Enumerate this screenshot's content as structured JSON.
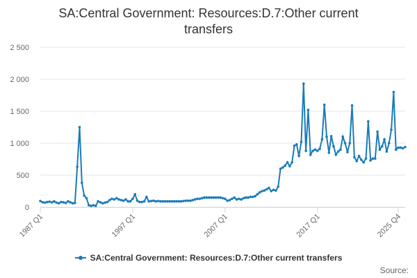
{
  "chart_data": {
    "type": "line",
    "title": "SA:Central Government: Resources:D.7:Other current transfers",
    "title_lines": [
      "SA:Central Government: Resources:D.7:Other current",
      "transfers"
    ],
    "xlabel": "",
    "ylabel": "",
    "ylim": [
      0,
      2500
    ],
    "yticks": [
      0,
      500,
      1000,
      1500,
      2000,
      2500
    ],
    "ytick_labels": [
      "0",
      "500",
      "1 000",
      "1 500",
      "2 000",
      "2 500"
    ],
    "xtick_labels": [
      "1987 Q1",
      "1997 Q1",
      "2007 Q1",
      "2017 Q1",
      "2025 Q4"
    ],
    "xtick_indices": [
      0,
      40,
      80,
      120,
      155
    ],
    "grid": true,
    "legend_position": "bottom",
    "color": "#1a7bb9",
    "series": [
      {
        "name": "SA:Central Government: Resources:D.7:Other current transfers",
        "values": [
          95,
          75,
          70,
          80,
          85,
          75,
          90,
          70,
          60,
          80,
          75,
          65,
          90,
          75,
          60,
          65,
          630,
          1250,
          380,
          180,
          140,
          30,
          20,
          30,
          20,
          90,
          75,
          60,
          70,
          80,
          110,
          130,
          120,
          140,
          120,
          110,
          100,
          120,
          90,
          90,
          130,
          200,
          100,
          80,
          80,
          90,
          160,
          90,
          95,
          100,
          90,
          95,
          90,
          90,
          90,
          90,
          90,
          90,
          90,
          90,
          90,
          90,
          95,
          100,
          100,
          100,
          110,
          120,
          130,
          130,
          140,
          150,
          150,
          150,
          150,
          150,
          150,
          150,
          150,
          140,
          130,
          100,
          110,
          130,
          150,
          120,
          130,
          120,
          140,
          150,
          150,
          160,
          160,
          170,
          200,
          230,
          250,
          260,
          280,
          300,
          250,
          270,
          260,
          320,
          600,
          620,
          650,
          700,
          640,
          700,
          960,
          980,
          800,
          1020,
          1930,
          880,
          1520,
          820,
          880,
          900,
          880,
          910,
          1060,
          1600,
          1100,
          850,
          1110,
          950,
          820,
          870,
          900,
          1100,
          1000,
          860,
          1000,
          1590,
          780,
          720,
          800,
          740,
          700,
          760,
          1340,
          730,
          760,
          760,
          1180,
          900,
          950,
          1060,
          870,
          1000,
          1210,
          1800,
          900,
          930,
          930,
          920,
          940
        ]
      }
    ],
    "source_label": "Source:"
  }
}
